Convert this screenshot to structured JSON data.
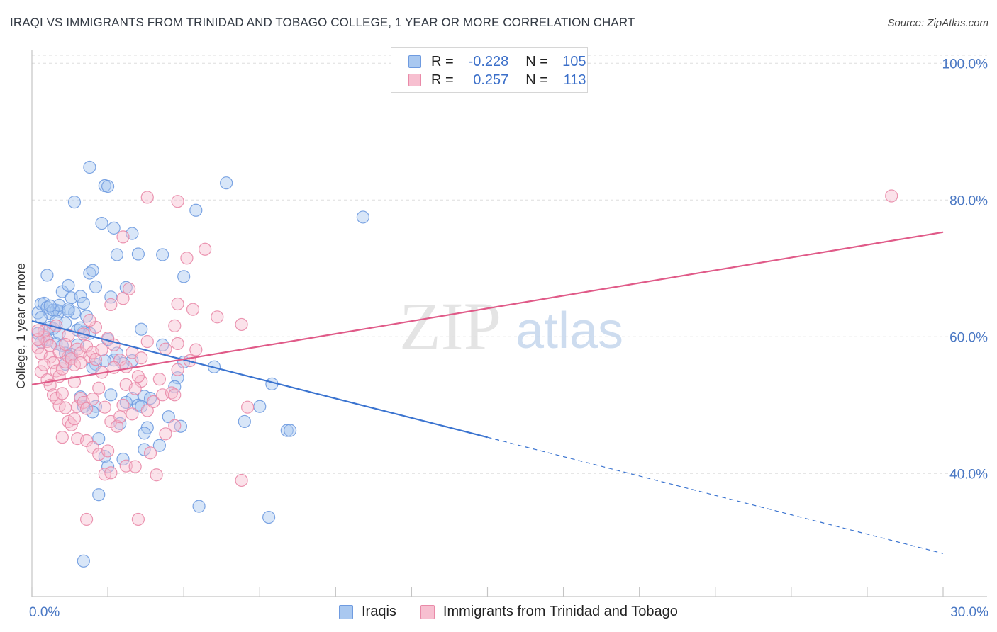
{
  "title": "IRAQI VS IMMIGRANTS FROM TRINIDAD AND TOBAGO COLLEGE, 1 YEAR OR MORE CORRELATION CHART",
  "source": "Source: ZipAtlas.com",
  "watermark": {
    "zip": "ZIP",
    "atlas": "atlas"
  },
  "legend": {
    "rows": [
      {
        "r_label": "R =",
        "r_value": "-0.228",
        "n_label": "N =",
        "n_value": "105",
        "color": "#a9c8f0",
        "border": "#6f9be0"
      },
      {
        "r_label": "R =",
        "r_value": "0.257",
        "n_label": "N =",
        "n_value": "113",
        "color": "#f7bfd0",
        "border": "#e98aa8"
      }
    ]
  },
  "bottom_legend": [
    {
      "label": "Iraqis",
      "color": "#a9c8f0",
      "border": "#6f9be0"
    },
    {
      "label": "Immigrants from Trinidad and Tobago",
      "color": "#f7bfd0",
      "border": "#e98aa8"
    }
  ],
  "chart_data": {
    "type": "scatter",
    "xlabel": "",
    "ylabel": "College, 1 year or more",
    "xlim": [
      0,
      30
    ],
    "ylim": [
      22,
      102
    ],
    "x_ticks": [
      {
        "value": 0,
        "label": "0.0%"
      },
      {
        "value": 30,
        "label": "30.0%"
      }
    ],
    "y_ticks": [
      {
        "value": 100,
        "label": "100.0%"
      },
      {
        "value": 80,
        "label": "80.0%"
      },
      {
        "value": 60,
        "label": "60.0%"
      },
      {
        "value": 40,
        "label": "40.0%"
      }
    ],
    "grid": true,
    "series": [
      {
        "name": "Iraqis",
        "color": "#6f9be0",
        "fill": "#a9c8f0",
        "trend": {
          "x_start": 0,
          "y_start": 62.3,
          "x_solid_end": 15,
          "y_solid_end": 45.3,
          "x_dash_end": 30,
          "y_dash_end": 28.3,
          "color": "#3b74d0"
        },
        "points": [
          [
            0.2,
            63.5
          ],
          [
            0.3,
            64.8
          ],
          [
            0.4,
            64.9
          ],
          [
            0.5,
            64.3
          ],
          [
            0.6,
            63.4
          ],
          [
            0.7,
            61.2
          ],
          [
            0.8,
            63.9
          ],
          [
            0.9,
            63.7
          ],
          [
            1.0,
            66.6
          ],
          [
            1.1,
            62.0
          ],
          [
            1.2,
            67.5
          ],
          [
            1.3,
            65.7
          ],
          [
            1.4,
            63.5
          ],
          [
            1.5,
            61.0
          ],
          [
            1.6,
            65.9
          ],
          [
            1.7,
            64.9
          ],
          [
            1.8,
            63.0
          ],
          [
            1.9,
            69.3
          ],
          [
            2.0,
            69.7
          ],
          [
            2.1,
            67.3
          ],
          [
            0.3,
            62.8
          ],
          [
            0.4,
            60.2
          ],
          [
            0.5,
            59.6
          ],
          [
            0.6,
            61.4
          ],
          [
            0.7,
            63.9
          ],
          [
            0.8,
            59.0
          ],
          [
            0.9,
            60.5
          ],
          [
            1.0,
            58.7
          ],
          [
            1.1,
            57.6
          ],
          [
            1.3,
            57.0
          ],
          [
            1.5,
            58.8
          ],
          [
            1.7,
            60.7
          ],
          [
            0.2,
            60.5
          ],
          [
            0.3,
            59.2
          ],
          [
            0.5,
            69.0
          ],
          [
            0.9,
            64.6
          ],
          [
            1.2,
            64.1
          ],
          [
            1.6,
            61.3
          ],
          [
            1.9,
            60.5
          ],
          [
            2.5,
            59.6
          ],
          [
            2.6,
            65.8
          ],
          [
            2.7,
            75.9
          ],
          [
            2.8,
            72.0
          ],
          [
            3.1,
            67.2
          ],
          [
            3.3,
            75.1
          ],
          [
            3.5,
            72.1
          ],
          [
            4.3,
            72.0
          ],
          [
            5.0,
            68.8
          ],
          [
            2.4,
            82.1
          ],
          [
            2.5,
            82.0
          ],
          [
            1.9,
            84.8
          ],
          [
            1.4,
            79.7
          ],
          [
            2.3,
            76.6
          ],
          [
            5.4,
            78.5
          ],
          [
            6.4,
            82.5
          ],
          [
            10.9,
            77.5
          ],
          [
            3.6,
            61.1
          ],
          [
            4.3,
            58.8
          ],
          [
            3.3,
            56.5
          ],
          [
            5.0,
            56.3
          ],
          [
            3.0,
            56.1
          ],
          [
            2.7,
            56.6
          ],
          [
            2.1,
            56.0
          ],
          [
            1.3,
            57.4
          ],
          [
            1.1,
            56.0
          ],
          [
            2.4,
            56.5
          ],
          [
            2.8,
            57.6
          ],
          [
            2.0,
            55.5
          ],
          [
            4.8,
            54.0
          ],
          [
            4.7,
            52.7
          ],
          [
            6.0,
            55.6
          ],
          [
            7.9,
            53.1
          ],
          [
            2.6,
            51.5
          ],
          [
            3.3,
            51.0
          ],
          [
            3.5,
            50.0
          ],
          [
            3.7,
            51.3
          ],
          [
            3.9,
            51.0
          ],
          [
            3.6,
            49.8
          ],
          [
            3.1,
            50.4
          ],
          [
            2.1,
            49.8
          ],
          [
            2.0,
            49.0
          ],
          [
            1.7,
            49.8
          ],
          [
            1.6,
            51.2
          ],
          [
            2.9,
            47.3
          ],
          [
            3.8,
            46.7
          ],
          [
            3.7,
            45.9
          ],
          [
            4.2,
            44.1
          ],
          [
            4.9,
            46.9
          ],
          [
            4.5,
            48.3
          ],
          [
            7.0,
            47.6
          ],
          [
            7.5,
            49.8
          ],
          [
            8.4,
            46.3
          ],
          [
            8.5,
            46.3
          ],
          [
            2.2,
            45.1
          ],
          [
            3.7,
            43.5
          ],
          [
            2.4,
            42.5
          ],
          [
            2.5,
            41.0
          ],
          [
            2.2,
            36.9
          ],
          [
            1.7,
            27.2
          ],
          [
            5.5,
            35.2
          ],
          [
            7.8,
            33.6
          ],
          [
            3.0,
            42.1
          ],
          [
            1.2,
            63.8
          ],
          [
            0.8,
            62.3
          ],
          [
            0.6,
            64.5
          ]
        ]
      },
      {
        "name": "Immigrants from Trinidad and Tobago",
        "color": "#e98aa8",
        "fill": "#f7bfd0",
        "trend": {
          "x_start": 0,
          "y_start": 53.0,
          "x_end": 30,
          "y_end": 75.3,
          "color": "#e05a88"
        },
        "points": [
          [
            0.2,
            58.4
          ],
          [
            0.3,
            57.5
          ],
          [
            0.4,
            60.0
          ],
          [
            0.5,
            59.3
          ],
          [
            0.6,
            57.0
          ],
          [
            0.7,
            56.2
          ],
          [
            0.8,
            55.0
          ],
          [
            0.9,
            54.2
          ],
          [
            1.0,
            55.3
          ],
          [
            1.1,
            56.3
          ],
          [
            1.2,
            57.1
          ],
          [
            1.3,
            56.8
          ],
          [
            1.4,
            55.9
          ],
          [
            1.5,
            58.2
          ],
          [
            1.6,
            57.6
          ],
          [
            1.7,
            60.4
          ],
          [
            1.8,
            58.6
          ],
          [
            1.9,
            57.1
          ],
          [
            2.0,
            57.7
          ],
          [
            2.1,
            56.7
          ],
          [
            0.3,
            54.9
          ],
          [
            0.5,
            53.7
          ],
          [
            0.6,
            52.9
          ],
          [
            0.7,
            51.5
          ],
          [
            0.8,
            51.0
          ],
          [
            0.9,
            49.9
          ],
          [
            1.0,
            51.7
          ],
          [
            1.1,
            49.6
          ],
          [
            1.2,
            47.6
          ],
          [
            1.3,
            47.1
          ],
          [
            1.4,
            48.0
          ],
          [
            1.5,
            49.8
          ],
          [
            1.6,
            51.0
          ],
          [
            1.7,
            50.4
          ],
          [
            1.8,
            49.5
          ],
          [
            2.0,
            50.9
          ],
          [
            2.2,
            52.5
          ],
          [
            2.4,
            49.7
          ],
          [
            2.6,
            47.6
          ],
          [
            2.8,
            46.9
          ],
          [
            1.0,
            45.3
          ],
          [
            1.5,
            45.1
          ],
          [
            1.8,
            44.8
          ],
          [
            2.0,
            43.8
          ],
          [
            2.2,
            42.8
          ],
          [
            2.4,
            39.9
          ],
          [
            2.6,
            40.1
          ],
          [
            3.1,
            41.1
          ],
          [
            3.4,
            41.0
          ],
          [
            4.1,
            39.8
          ],
          [
            1.8,
            33.3
          ],
          [
            3.5,
            33.3
          ],
          [
            6.9,
            39.0
          ],
          [
            2.9,
            48.3
          ],
          [
            3.3,
            48.7
          ],
          [
            3.0,
            50.0
          ],
          [
            3.8,
            49.2
          ],
          [
            4.0,
            50.5
          ],
          [
            4.3,
            51.5
          ],
          [
            4.6,
            51.8
          ],
          [
            4.2,
            53.8
          ],
          [
            4.7,
            51.5
          ],
          [
            3.6,
            53.5
          ],
          [
            3.1,
            53.0
          ],
          [
            3.4,
            52.4
          ],
          [
            4.4,
            45.8
          ],
          [
            4.7,
            47.0
          ],
          [
            5.2,
            56.5
          ],
          [
            5.4,
            58.1
          ],
          [
            4.8,
            55.2
          ],
          [
            2.9,
            56.6
          ],
          [
            2.7,
            58.8
          ],
          [
            2.5,
            59.8
          ],
          [
            2.3,
            58.1
          ],
          [
            3.3,
            57.7
          ],
          [
            3.6,
            56.9
          ],
          [
            3.1,
            55.6
          ],
          [
            3.8,
            59.3
          ],
          [
            4.4,
            58.2
          ],
          [
            4.8,
            59.0
          ],
          [
            2.6,
            64.7
          ],
          [
            3.0,
            65.6
          ],
          [
            3.2,
            67.0
          ],
          [
            3.0,
            74.6
          ],
          [
            3.8,
            80.4
          ],
          [
            4.8,
            79.8
          ],
          [
            5.1,
            71.5
          ],
          [
            5.7,
            72.8
          ],
          [
            5.3,
            64.0
          ],
          [
            4.7,
            61.6
          ],
          [
            6.1,
            62.9
          ],
          [
            6.9,
            61.8
          ],
          [
            4.8,
            64.8
          ],
          [
            7.1,
            49.7
          ],
          [
            0.4,
            60.8
          ],
          [
            0.2,
            59.6
          ],
          [
            0.6,
            58.7
          ],
          [
            0.9,
            57.8
          ],
          [
            1.6,
            56.2
          ],
          [
            2.1,
            61.4
          ],
          [
            28.3,
            80.6
          ],
          [
            1.2,
            60.2
          ],
          [
            0.8,
            61.6
          ],
          [
            1.9,
            62.4
          ],
          [
            2.3,
            54.8
          ],
          [
            2.7,
            55.5
          ],
          [
            3.5,
            54.2
          ],
          [
            1.4,
            53.4
          ],
          [
            0.4,
            55.9
          ],
          [
            1.1,
            58.9
          ],
          [
            0.2,
            60.9
          ],
          [
            2.5,
            43.3
          ],
          [
            3.9,
            43.0
          ]
        ]
      }
    ]
  }
}
